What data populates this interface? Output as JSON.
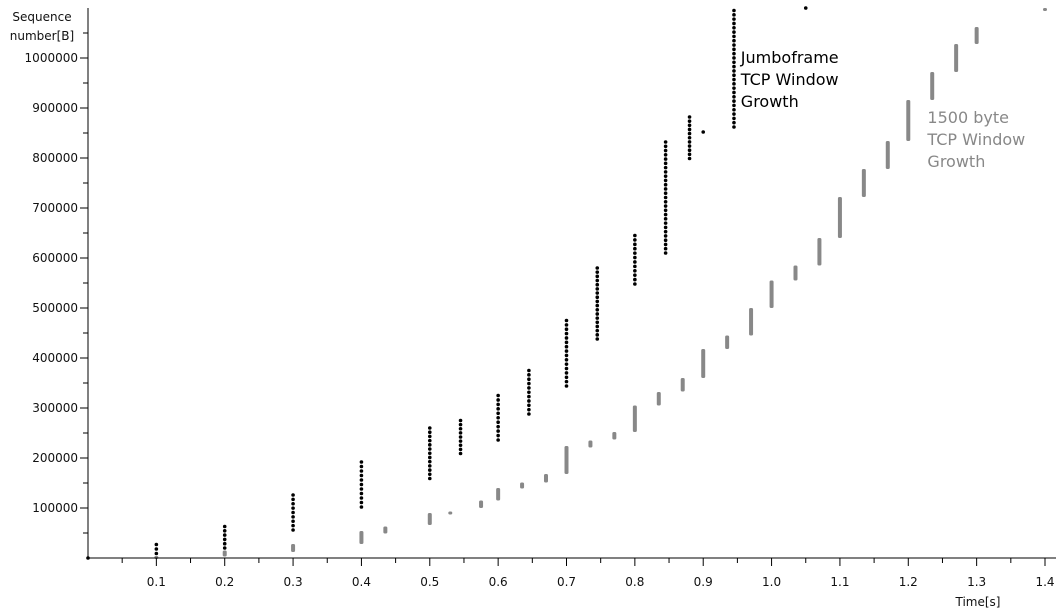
{
  "chart_data": {
    "type": "scatter",
    "xlabel": "Time[s]",
    "ylabel_lines": [
      "Sequence",
      "number[B]"
    ],
    "xlim": [
      0,
      1.41
    ],
    "ylim": [
      0,
      1105000
    ],
    "x_ticks": [
      0.1,
      0.2,
      0.3,
      0.4,
      0.5,
      0.6,
      0.7,
      0.8,
      0.9,
      1.0,
      1.1,
      1.2,
      1.3,
      1.4
    ],
    "x_tick_labels": [
      "0.1",
      "0.2",
      "0.3",
      "0.4",
      "0.5",
      "0.6",
      "0.7",
      "0.8",
      "0.9",
      "1.0",
      "1.1",
      "1.2",
      "1.3",
      "1.4"
    ],
    "y_ticks": [
      100000,
      200000,
      300000,
      400000,
      500000,
      600000,
      700000,
      800000,
      900000,
      1000000
    ],
    "y_tick_labels": [
      "100000",
      "200000",
      "300000",
      "400000",
      "500000",
      "600000",
      "700000",
      "800000",
      "900000",
      "1000000"
    ],
    "grid": false,
    "colors": {
      "jumbo": "#000000",
      "standard": "#888888",
      "axis": "#000000"
    },
    "annotations": [
      {
        "series": "jumbo",
        "lines": [
          "Jumboframe",
          "TCP Window",
          "Growth"
        ],
        "x": 0.955,
        "y": 990000,
        "color": "#000000"
      },
      {
        "series": "standard",
        "lines": [
          "1500 byte",
          "TCP Window",
          "Growth"
        ],
        "x": 1.228,
        "y": 870000,
        "color": "#888888"
      }
    ],
    "series": [
      {
        "id": "jumbo",
        "marker": "dots",
        "bursts": [
          {
            "x": 0.0,
            "y0": 0,
            "y1": 0
          },
          {
            "x": 0.1,
            "y0": 9000,
            "y1": 27000
          },
          {
            "x": 0.2,
            "y0": 20000,
            "y1": 63000
          },
          {
            "x": 0.3,
            "y0": 56000,
            "y1": 126000
          },
          {
            "x": 0.4,
            "y0": 102000,
            "y1": 192000
          },
          {
            "x": 0.5,
            "y0": 159000,
            "y1": 260000
          },
          {
            "x": 0.545,
            "y0": 209000,
            "y1": 275000
          },
          {
            "x": 0.6,
            "y0": 236000,
            "y1": 325000
          },
          {
            "x": 0.645,
            "y0": 288000,
            "y1": 375000
          },
          {
            "x": 0.7,
            "y0": 344000,
            "y1": 475000
          },
          {
            "x": 0.745,
            "y0": 438000,
            "y1": 580000
          },
          {
            "x": 0.8,
            "y0": 548000,
            "y1": 645000
          },
          {
            "x": 0.845,
            "y0": 610000,
            "y1": 832000
          },
          {
            "x": 0.88,
            "y0": 799000,
            "y1": 882000
          },
          {
            "x": 0.9,
            "y0": 852000,
            "y1": 852000
          },
          {
            "x": 0.945,
            "y0": 862000,
            "y1": 1095000
          },
          {
            "x": 1.05,
            "y0": 1100000,
            "y1": 1100000
          }
        ]
      },
      {
        "id": "standard",
        "marker": "bars",
        "bursts": [
          {
            "x": 0.1,
            "y0": 0,
            "y1": 4000
          },
          {
            "x": 0.2,
            "y0": 3000,
            "y1": 15000
          },
          {
            "x": 0.3,
            "y0": 12000,
            "y1": 28000
          },
          {
            "x": 0.4,
            "y0": 28000,
            "y1": 54000
          },
          {
            "x": 0.435,
            "y0": 49000,
            "y1": 63000
          },
          {
            "x": 0.5,
            "y0": 66000,
            "y1": 90000
          },
          {
            "x": 0.53,
            "y0": 89000,
            "y1": 93000
          },
          {
            "x": 0.575,
            "y0": 100000,
            "y1": 115000
          },
          {
            "x": 0.6,
            "y0": 115000,
            "y1": 140000
          },
          {
            "x": 0.635,
            "y0": 139000,
            "y1": 151000
          },
          {
            "x": 0.67,
            "y0": 151000,
            "y1": 168000
          },
          {
            "x": 0.7,
            "y0": 168000,
            "y1": 224000
          },
          {
            "x": 0.735,
            "y0": 221000,
            "y1": 235000
          },
          {
            "x": 0.77,
            "y0": 237000,
            "y1": 252000
          },
          {
            "x": 0.8,
            "y0": 252000,
            "y1": 305000
          },
          {
            "x": 0.835,
            "y0": 305000,
            "y1": 332000
          },
          {
            "x": 0.87,
            "y0": 333000,
            "y1": 360000
          },
          {
            "x": 0.9,
            "y0": 360000,
            "y1": 418000
          },
          {
            "x": 0.935,
            "y0": 418000,
            "y1": 445000
          },
          {
            "x": 0.97,
            "y0": 445000,
            "y1": 500000
          },
          {
            "x": 1.0,
            "y0": 500000,
            "y1": 555000
          },
          {
            "x": 1.035,
            "y0": 555000,
            "y1": 585000
          },
          {
            "x": 1.07,
            "y0": 585000,
            "y1": 640000
          },
          {
            "x": 1.1,
            "y0": 640000,
            "y1": 722000
          },
          {
            "x": 1.135,
            "y0": 722000,
            "y1": 778000
          },
          {
            "x": 1.17,
            "y0": 778000,
            "y1": 834000
          },
          {
            "x": 1.2,
            "y0": 834000,
            "y1": 916000
          },
          {
            "x": 1.235,
            "y0": 916000,
            "y1": 972000
          },
          {
            "x": 1.27,
            "y0": 972000,
            "y1": 1028000
          },
          {
            "x": 1.3,
            "y0": 1028000,
            "y1": 1062000
          },
          {
            "x": 1.4,
            "y0": 1100000,
            "y1": 1100000
          }
        ]
      }
    ]
  }
}
